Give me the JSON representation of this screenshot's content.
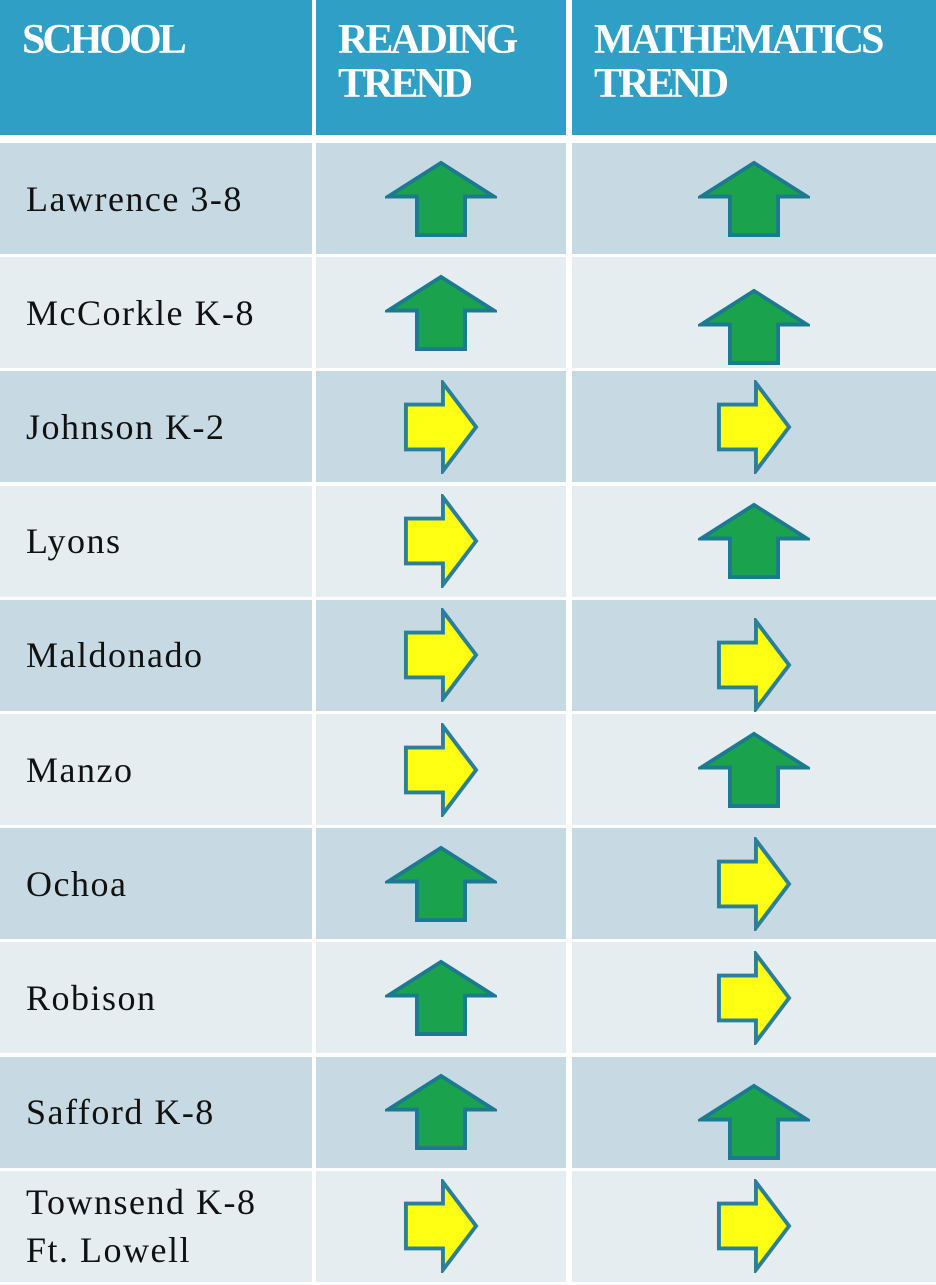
{
  "header": [
    "SCHOOL",
    "READING TREND",
    "MATHEMATICS TREND"
  ],
  "schools": [
    "Lawrence 3-8",
    "McCorkle K-8",
    "Johnson K-2",
    "Lyons",
    "Maldonado",
    "Manzo",
    "Ochoa",
    "Robison",
    "Safford K-8",
    "Townsend K-8\nFt. Lowell"
  ]
}
